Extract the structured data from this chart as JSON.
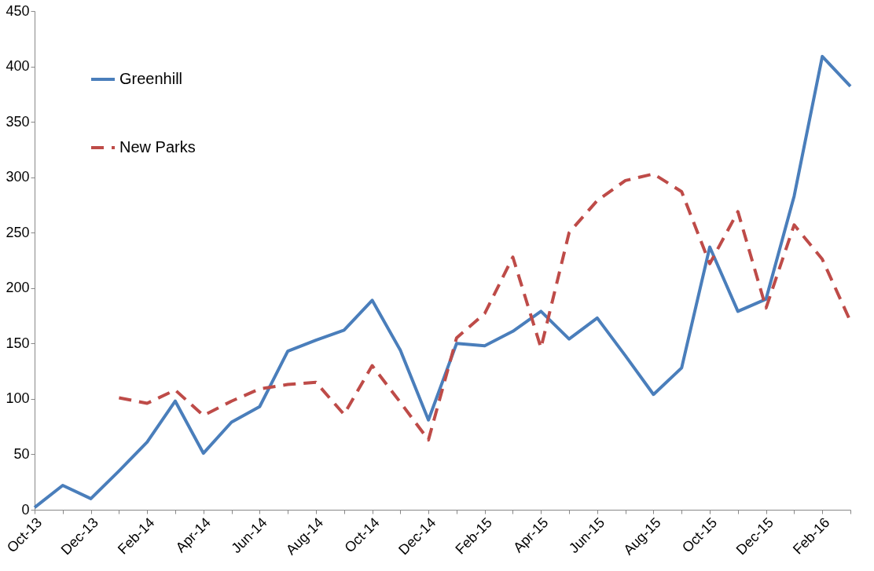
{
  "chart_data": {
    "type": "line",
    "categories": [
      "Oct-13",
      null,
      "Dec-13",
      null,
      "Feb-14",
      null,
      "Apr-14",
      null,
      "Jun-14",
      null,
      "Aug-14",
      null,
      "Oct-14",
      null,
      "Dec-14",
      null,
      "Feb-15",
      null,
      "Apr-15",
      null,
      "Jun-15",
      null,
      "Aug-15",
      null,
      "Oct-15",
      null,
      "Dec-15",
      null,
      "Feb-16",
      null
    ],
    "series": [
      {
        "name": "Greenhill",
        "color": "#4a7ebb",
        "line_style": "solid",
        "values": [
          2,
          22,
          10,
          35,
          61,
          98,
          51,
          79,
          93,
          143,
          153,
          162,
          189,
          144,
          81,
          150,
          148,
          161,
          179,
          154,
          173,
          139,
          104,
          128,
          237,
          179,
          190,
          283,
          409,
          382
        ]
      },
      {
        "name": "New Parks",
        "color": "#be4b48",
        "line_style": "dashed",
        "values": [
          null,
          null,
          null,
          101,
          96,
          108,
          85,
          98,
          109,
          113,
          115,
          86,
          130,
          97,
          63,
          155,
          177,
          228,
          146,
          250,
          279,
          297,
          303,
          287,
          222,
          269,
          182,
          257,
          226,
          170
        ]
      }
    ],
    "ylim": [
      0,
      450
    ],
    "yticks": [
      0,
      50,
      100,
      150,
      200,
      250,
      300,
      350,
      400,
      450
    ],
    "grid": false,
    "legend": "top left",
    "marker": "none"
  }
}
